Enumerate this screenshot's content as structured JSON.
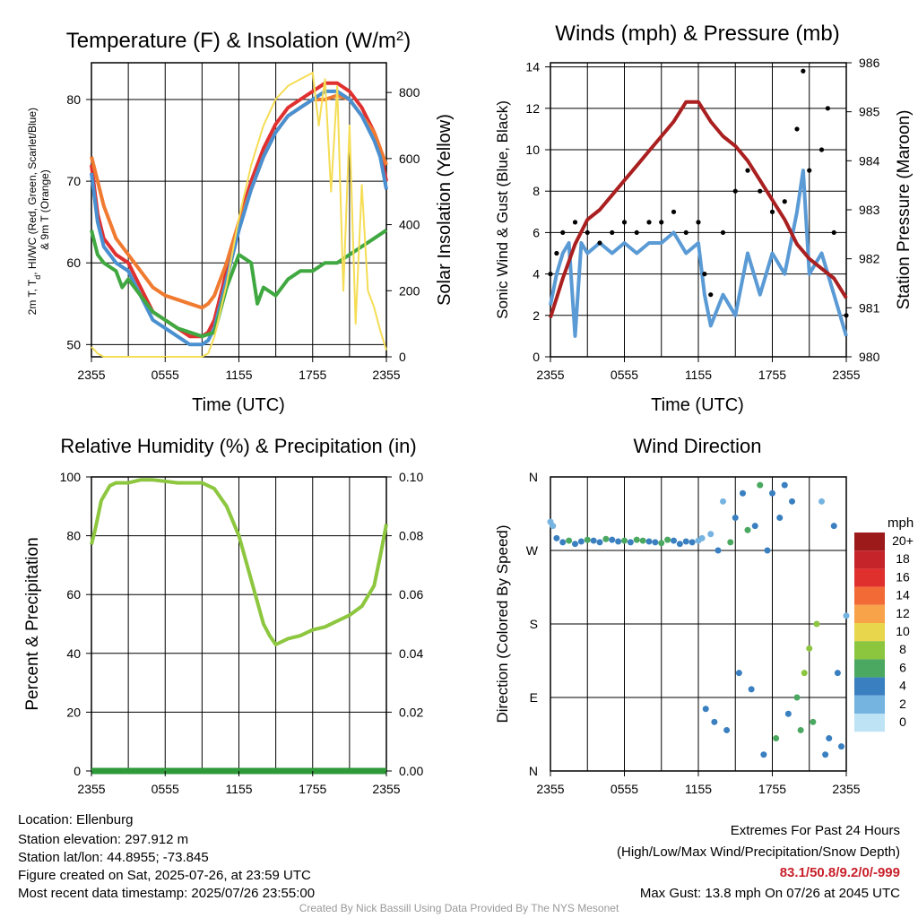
{
  "charts_meta": {
    "temperature": {
      "title": "Temperature (F) & Insolation (W/m²)",
      "ylabel_left": "2m T, Tₐ, HI/WC (Red, Green, Scarlet/Blue) & 9m T (Orange)",
      "ylabel_right": "Solar Insolation (Yellow)",
      "xlabel": "Time (UTC)"
    }
  },
  "chart_data": [
    {
      "id": "temperature",
      "type": "line",
      "title": "Temperature (F) & Insolation (W/m²)",
      "xlabel": "Time (UTC)",
      "ylabel": "2m T, Td, HI/WC (Red, Green, Scarlet/Blue) & 9m T (Orange)",
      "ylabel_right": "Solar Insolation (Yellow)",
      "x_ticks": [
        "2355",
        "0555",
        "1155",
        "1755",
        "2355"
      ],
      "x_range_hours": [
        0,
        24
      ],
      "ylim": [
        48.5,
        84.5
      ],
      "y_ticks": [
        50,
        60,
        70,
        80
      ],
      "ylim_right": [
        0,
        890
      ],
      "y_ticks_right": [
        0,
        200,
        400,
        600,
        800
      ],
      "series": [
        {
          "name": "2m T",
          "color": "#e03030",
          "axis": "left",
          "x": [
            0,
            0.5,
            1,
            2,
            3,
            4,
            5,
            6,
            7,
            8,
            9,
            9.5,
            10,
            11,
            12,
            13,
            14,
            15,
            16,
            17,
            18,
            19,
            20,
            21,
            22,
            23,
            23.5,
            24
          ],
          "y": [
            72,
            66,
            63,
            61,
            60,
            57,
            54,
            53,
            52,
            51,
            51,
            51.5,
            53,
            59,
            65,
            70,
            74,
            77,
            79,
            80,
            81,
            82,
            82,
            81,
            79,
            76,
            74,
            70
          ]
        },
        {
          "name": "9m T",
          "color": "#f07a30",
          "axis": "left",
          "x": [
            0,
            0.5,
            1,
            2,
            3,
            4,
            5,
            6,
            7,
            8,
            9,
            9.5,
            10,
            11,
            12,
            13,
            14,
            15,
            16,
            17,
            18,
            19,
            20,
            21,
            22,
            23,
            23.5,
            24
          ],
          "y": [
            73,
            70,
            67,
            63,
            61,
            59,
            57,
            56,
            55.5,
            55,
            54.5,
            55,
            56,
            60,
            65,
            69,
            73,
            76,
            78,
            79,
            80,
            80,
            80.5,
            80,
            78,
            76,
            74,
            72
          ]
        },
        {
          "name": "HI/WC",
          "color": "#4a90d0",
          "axis": "left",
          "x": [
            0,
            0.5,
            1,
            2,
            3,
            4,
            5,
            6,
            7,
            8,
            9,
            9.5,
            10,
            11,
            12,
            13,
            14,
            15,
            16,
            17,
            18,
            19,
            20,
            21,
            22,
            23,
            23.5,
            24
          ],
          "y": [
            71,
            65,
            62,
            60,
            59,
            56,
            53,
            52,
            51,
            50,
            50,
            50.5,
            52,
            58,
            64,
            69,
            73,
            76,
            78,
            79,
            80,
            81,
            81,
            80,
            78,
            75,
            73,
            69
          ]
        },
        {
          "name": "Td",
          "color": "#40a840",
          "axis": "left",
          "x": [
            0,
            0.5,
            1,
            2,
            2.5,
            3,
            4,
            5,
            6,
            7,
            8,
            9,
            10,
            11,
            12,
            13,
            13.5,
            14,
            15,
            16,
            17,
            18,
            19,
            20,
            21,
            22,
            23,
            24
          ],
          "y": [
            64,
            61,
            60,
            59,
            57,
            58,
            56,
            54,
            53,
            52,
            51.5,
            51,
            51.5,
            57,
            61,
            60,
            55,
            57,
            56,
            58,
            59,
            59,
            60,
            60,
            61,
            62,
            63,
            64
          ]
        },
        {
          "name": "Solar Insolation",
          "color": "#f5dd55",
          "axis": "right",
          "x": [
            0,
            0.5,
            1,
            2,
            3,
            4,
            5,
            6,
            7,
            8,
            9,
            9.5,
            10,
            11,
            12,
            13,
            14,
            15,
            16,
            17,
            18,
            18.5,
            19,
            19.5,
            20,
            20.5,
            21,
            21.5,
            22,
            22.5,
            23,
            23.5,
            24
          ],
          "y": [
            30,
            10,
            0,
            0,
            0,
            0,
            0,
            0,
            0,
            0,
            0,
            10,
            60,
            220,
            420,
            580,
            700,
            780,
            820,
            840,
            860,
            700,
            840,
            500,
            820,
            200,
            700,
            100,
            520,
            200,
            150,
            80,
            20
          ]
        }
      ]
    },
    {
      "id": "winds",
      "type": "line",
      "title": "Winds (mph) & Pressure (mb)",
      "xlabel": "Time (UTC)",
      "ylabel": "Sonic Wind & Gust (Blue, Black)",
      "ylabel_right": "Station Pressure (Maroon)",
      "x_ticks": [
        "2355",
        "0555",
        "1155",
        "1755",
        "2355"
      ],
      "ylim": [
        0,
        14.2
      ],
      "y_ticks": [
        0,
        2,
        4,
        6,
        8,
        10,
        12,
        14
      ],
      "ylim_right": [
        980,
        986
      ],
      "y_ticks_right": [
        980,
        981,
        982,
        983,
        984,
        985,
        986
      ],
      "series": [
        {
          "name": "Sonic Wind",
          "color": "#5a9ad5",
          "axis": "left",
          "x": [
            0,
            0.5,
            1,
            1.5,
            2,
            2.5,
            3,
            4,
            5,
            6,
            7,
            8,
            9,
            10,
            11,
            12,
            12.5,
            13,
            14,
            15,
            16,
            17,
            18,
            19,
            20,
            20.5,
            21,
            22,
            23,
            24
          ],
          "y": [
            2.5,
            4,
            5,
            5.5,
            1,
            5.5,
            5,
            5.5,
            5,
            5.5,
            5,
            5.5,
            5.5,
            6,
            5,
            5.5,
            3,
            1.5,
            3,
            2,
            5,
            3,
            5,
            4,
            7,
            9,
            4,
            5,
            3,
            1
          ]
        },
        {
          "name": "Gust",
          "color": "#000000",
          "axis": "left",
          "x": [
            0,
            0.5,
            1,
            2,
            3,
            4,
            5,
            6,
            7,
            8,
            9,
            10,
            11,
            12,
            12.5,
            13,
            14,
            15,
            16,
            17,
            18,
            19,
            20,
            20.5,
            21,
            22,
            22.5,
            23,
            24
          ],
          "y": [
            4,
            5,
            6,
            6.5,
            6,
            5.5,
            6,
            6.5,
            6,
            6.5,
            6.5,
            7,
            6,
            6.5,
            4,
            3,
            6,
            8,
            9,
            8,
            7,
            7.5,
            11,
            13.8,
            9,
            10,
            12,
            6,
            2
          ]
        },
        {
          "name": "Station Pressure",
          "color": "#aa1f1f",
          "axis": "right",
          "x": [
            0,
            1,
            2,
            3,
            4,
            5,
            6,
            7,
            8,
            9,
            10,
            11,
            12,
            13,
            14,
            15,
            16,
            17,
            18,
            19,
            20,
            21,
            22,
            23,
            24
          ],
          "y": [
            980.8,
            981.6,
            982.3,
            982.8,
            983.0,
            983.3,
            983.6,
            983.9,
            984.2,
            984.5,
            984.8,
            985.2,
            985.2,
            984.8,
            984.5,
            984.3,
            984.0,
            983.6,
            983.2,
            982.8,
            982.3,
            982.0,
            981.8,
            981.6,
            981.2
          ]
        }
      ]
    },
    {
      "id": "humidity",
      "type": "line",
      "title": "Relative Humidity (%) & Precipitation (in)",
      "ylabel": "Percent & Precipitation",
      "x_ticks": [
        "2355",
        "0555",
        "1155",
        "1755",
        "2355"
      ],
      "ylim": [
        0,
        100
      ],
      "y_ticks": [
        0,
        20,
        40,
        60,
        80,
        100
      ],
      "ylim_right": [
        0,
        0.1
      ],
      "y_ticks_right": [
        "0.00",
        "0.02",
        "0.04",
        "0.06",
        "0.08",
        "0.10"
      ],
      "series": [
        {
          "name": "Relative Humidity",
          "color": "#8dc63f",
          "axis": "left",
          "x": [
            0,
            0.3,
            0.8,
            1.5,
            2,
            3,
            4,
            5,
            6,
            7,
            8,
            9,
            10,
            11,
            12,
            13,
            14,
            14.5,
            15,
            16,
            17,
            18,
            19,
            20,
            21,
            22,
            23,
            23.5,
            24
          ],
          "y": [
            77,
            82,
            92,
            97,
            98,
            98,
            99,
            99,
            98.5,
            98,
            98,
            98,
            96,
            90,
            80,
            65,
            50,
            46,
            43,
            45,
            46,
            48,
            49,
            51,
            53,
            56,
            63,
            73,
            84
          ]
        },
        {
          "name": "Precipitation",
          "color": "#2e9a3a",
          "axis": "right",
          "x": [
            0,
            24
          ],
          "y": [
            0,
            0
          ]
        }
      ]
    },
    {
      "id": "direction",
      "type": "scatter",
      "title": "Wind Direction",
      "ylabel": "Direction (Colored By Speed)",
      "x_ticks": [
        "2355",
        "0555",
        "1155",
        "1755",
        "2355"
      ],
      "y_ticks": [
        "N",
        "E",
        "S",
        "W",
        "N"
      ],
      "ylim": [
        0,
        360
      ],
      "legend_title": "mph",
      "legend_labels": [
        "20+",
        "18",
        "16",
        "14",
        "12",
        "10",
        "8",
        "6",
        "4",
        "2",
        "0"
      ],
      "legend_colors": [
        "#9c1a1a",
        "#c4242a",
        "#e0302d",
        "#f26a35",
        "#f8a24a",
        "#e8d64c",
        "#8cc63f",
        "#4aa860",
        "#3a7fc0",
        "#75b3e0",
        "#bde3f5"
      ],
      "points_x": [
        0,
        0.2,
        0.5,
        1,
        1.5,
        2,
        2.5,
        3,
        3.5,
        4,
        4.5,
        5,
        5.5,
        6,
        6.5,
        7,
        7.5,
        8,
        8.5,
        9,
        9.5,
        10,
        10.5,
        11,
        11.5,
        12,
        12.3,
        12.6,
        13,
        13.3,
        13.6,
        14,
        14.3,
        14.6,
        15,
        15.3,
        15.6,
        16,
        16.3,
        16.6,
        17,
        17.3,
        17.6,
        18,
        18.3,
        18.6,
        19,
        19.3,
        19.6,
        20,
        20.3,
        20.6,
        21,
        21.3,
        21.6,
        22,
        22.3,
        22.6,
        23,
        23.3,
        23.6,
        24
      ],
      "points_y": [
        305,
        300,
        285,
        280,
        282,
        278,
        281,
        283,
        282,
        280,
        284,
        283,
        281,
        282,
        280,
        283,
        282,
        281,
        280,
        279,
        283,
        282,
        278,
        281,
        280,
        282,
        285,
        76,
        290,
        60,
        270,
        330,
        50,
        280,
        310,
        120,
        340,
        295,
        100,
        300,
        350,
        20,
        270,
        340,
        40,
        310,
        350,
        70,
        330,
        90,
        50,
        120,
        150,
        60,
        180,
        330,
        20,
        40,
        300,
        120,
        30,
        190
      ],
      "points_speed": [
        2,
        2,
        3,
        4,
        5,
        4,
        4,
        5,
        4,
        4,
        5,
        4,
        4,
        5,
        4,
        6,
        5,
        4,
        4,
        5,
        6,
        4,
        4,
        3,
        3,
        2,
        1,
        3,
        2,
        4,
        4,
        1,
        3,
        5,
        4,
        3,
        3,
        5,
        4,
        3,
        6,
        4,
        3,
        4,
        5,
        4,
        3,
        4,
        3,
        5,
        6,
        7,
        7,
        6,
        7,
        2,
        3,
        4,
        3,
        4,
        3,
        1
      ]
    }
  ],
  "footer": {
    "location": "Location: Ellenburg",
    "elevation": "Station elevation: 297.912 m",
    "latlon": "Station lat/lon: 44.8955; -73.845",
    "created": "Figure created on Sat, 2025-07-26, at 23:59 UTC",
    "recent": "Most recent data timestamp: 2025/07/26 23:55:00",
    "extremes_title": "Extremes For Past 24 Hours",
    "extremes_fields": "(High/Low/Max Wind/Precipitation/Snow Depth)",
    "extremes_values": "83.1/50.8/9.2/0/-999",
    "max_gust": "Max Gust: 13.8 mph On 07/26 at 2045 UTC",
    "credit": "Created By Nick Bassill Using Data Provided By The NYS Mesonet"
  },
  "colors": {
    "extremes": "#c8202a",
    "credit": "#999999"
  }
}
